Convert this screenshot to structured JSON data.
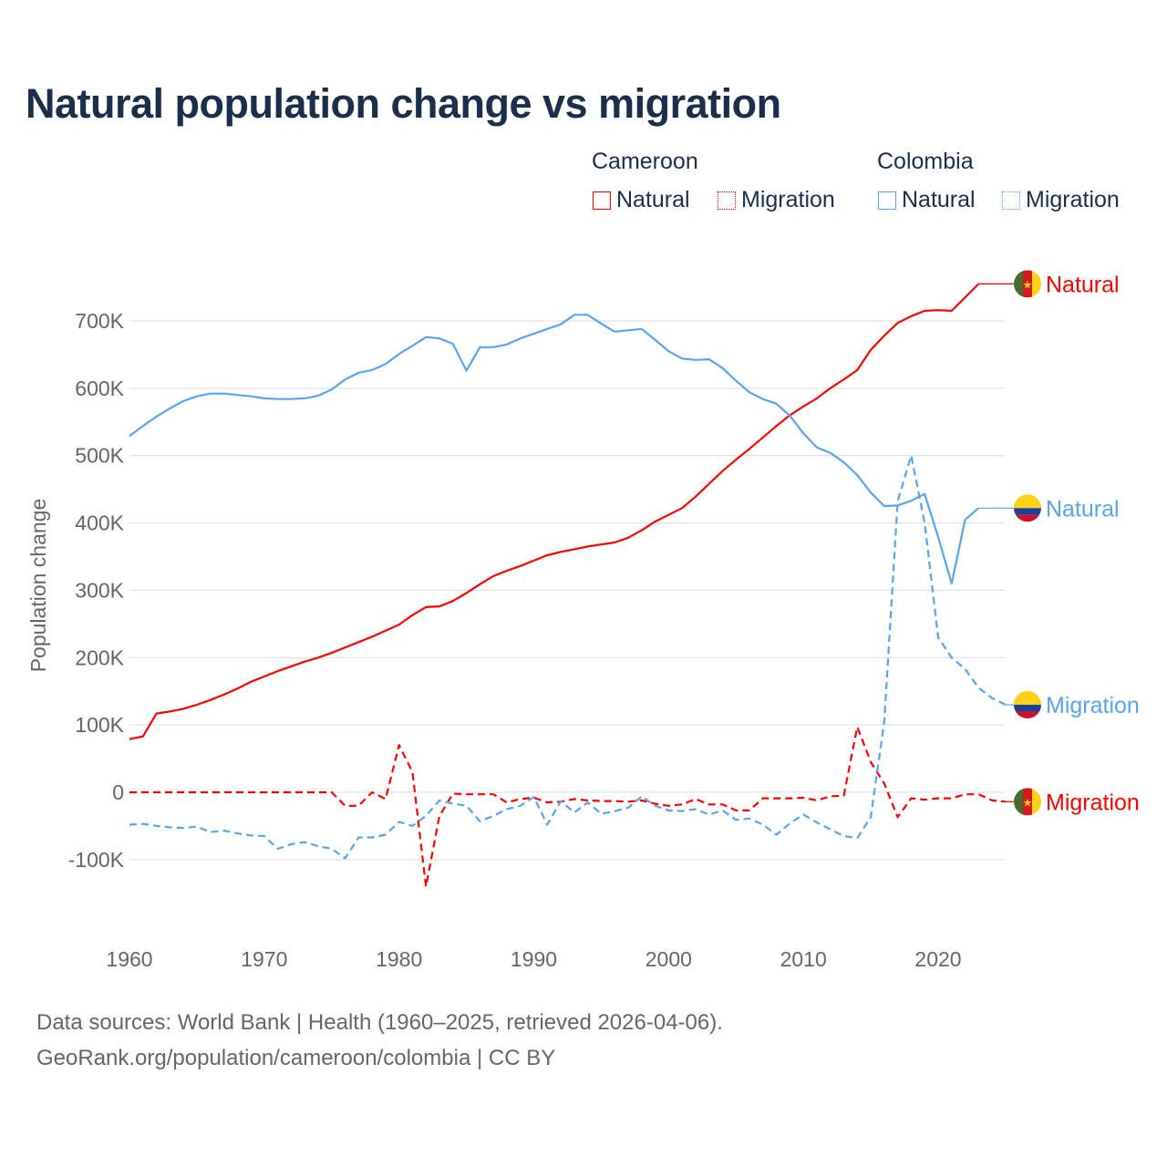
{
  "title": "Natural population change vs migration",
  "legend": {
    "groups": [
      {
        "name": "Cameroon",
        "items": [
          {
            "label": "Natural",
            "style": "solid"
          },
          {
            "label": "Migration",
            "style": "dotted"
          }
        ],
        "color": "#ff0000"
      },
      {
        "name": "Colombia",
        "items": [
          {
            "label": "Natural",
            "style": "solid"
          },
          {
            "label": "Migration",
            "style": "dotted"
          }
        ],
        "color": "#5aa5ea"
      }
    ]
  },
  "footer": {
    "line1": "Data sources: World Bank | Health (1960–2025, retrieved 2026-04-06).",
    "line2": "GeoRank.org/population/cameroon/colombia | CC BY"
  },
  "chart_data": {
    "type": "line",
    "title": "Natural population change vs migration",
    "xlabel": "",
    "ylabel": "Population change",
    "xlim": [
      1960,
      2025
    ],
    "ylim": [
      -200000,
      800000
    ],
    "yticks": [
      -100000,
      0,
      100000,
      200000,
      300000,
      400000,
      500000,
      600000,
      700000
    ],
    "ytick_labels": [
      "-100K",
      "0",
      "100K",
      "200K",
      "300K",
      "400K",
      "500K",
      "600K",
      "700K"
    ],
    "xticks": [
      1960,
      1970,
      1980,
      1990,
      2000,
      2010,
      2020
    ],
    "xtick_labels": [
      "1960",
      "1970",
      "1980",
      "1990",
      "2000",
      "2010",
      "2020"
    ],
    "grid": true,
    "legend_position": "top-right",
    "series": [
      {
        "name": "Cameroon Natural",
        "country": "Cameroon",
        "end_label": "Natural",
        "color": "#ff0000",
        "dash": "solid",
        "start": 1960,
        "values": [
          79,
          83,
          117,
          120,
          124,
          130,
          137,
          145,
          154,
          164,
          172,
          180,
          187,
          194,
          200,
          207,
          215,
          223,
          231,
          240,
          249,
          263,
          275,
          276,
          284,
          296,
          309,
          321,
          329,
          336,
          344,
          352,
          357,
          361,
          365,
          368,
          371,
          378,
          389,
          402,
          412,
          422,
          439,
          458,
          477,
          494,
          510,
          527,
          544,
          560,
          573,
          585,
          600,
          613,
          627,
          657,
          678,
          697,
          707,
          715,
          716,
          715,
          735,
          755
        ]
      },
      {
        "name": "Cameroon Migration",
        "country": "Cameroon",
        "end_label": "Migration",
        "color": "#ff0000",
        "dash": "dashed",
        "start": 1960,
        "values": [
          0,
          0,
          0,
          0,
          0,
          0,
          0,
          0,
          0,
          0,
          0,
          0,
          0,
          0,
          0,
          0,
          -20,
          -20,
          0,
          -10,
          70,
          30,
          -140,
          -35,
          -2,
          -3,
          -3,
          -3,
          -15,
          -10,
          -8,
          -15,
          -14,
          -10,
          -12,
          -13,
          -13,
          -14,
          -12,
          -17,
          -20,
          -18,
          -10,
          -18,
          -18,
          -27,
          -27,
          -9,
          -9,
          -9,
          -8,
          -12,
          -6,
          -5,
          97,
          45,
          13,
          -37,
          -9,
          -11,
          -9,
          -9,
          -3,
          -3,
          -12,
          -14
        ]
      },
      {
        "name": "Colombia Natural",
        "country": "Colombia",
        "end_label": "Natural",
        "color": "#5aa5ea",
        "dash": "solid",
        "start": 1960,
        "values": [
          529,
          544,
          558,
          570,
          581,
          588,
          592,
          592,
          590,
          588,
          585,
          584,
          584,
          585,
          589,
          598,
          613,
          623,
          627,
          636,
          651,
          663,
          676,
          674,
          666,
          626,
          661,
          661,
          665,
          674,
          681,
          688,
          695,
          709,
          709,
          696,
          684,
          686,
          688,
          672,
          655,
          644,
          642,
          643,
          630,
          611,
          594,
          584,
          577,
          559,
          533,
          512,
          504,
          490,
          471,
          445,
          425,
          426,
          433,
          443,
          379,
          310,
          405,
          422
        ]
      },
      {
        "name": "Colombia Migration",
        "country": "Colombia",
        "end_label": "Migration",
        "color": "#5aa5ea",
        "dash": "dashed",
        "start": 1960,
        "values": [
          -48,
          -47,
          -50,
          -52,
          -53,
          -51,
          -59,
          -57,
          -61,
          -64,
          -65,
          -84,
          -77,
          -74,
          -80,
          -84,
          -98,
          -67,
          -67,
          -63,
          -44,
          -50,
          -35,
          -12,
          -17,
          -20,
          -43,
          -35,
          -25,
          -20,
          -7,
          -48,
          -13,
          -30,
          -15,
          -32,
          -28,
          -23,
          -6,
          -20,
          -27,
          -28,
          -25,
          -33,
          -27,
          -41,
          -39,
          -48,
          -63,
          -46,
          -33,
          -45,
          -55,
          -65,
          -68,
          -37,
          105,
          432,
          500,
          400,
          230,
          200,
          183,
          155,
          140,
          130
        ]
      }
    ],
    "value_unit": "thousands"
  }
}
